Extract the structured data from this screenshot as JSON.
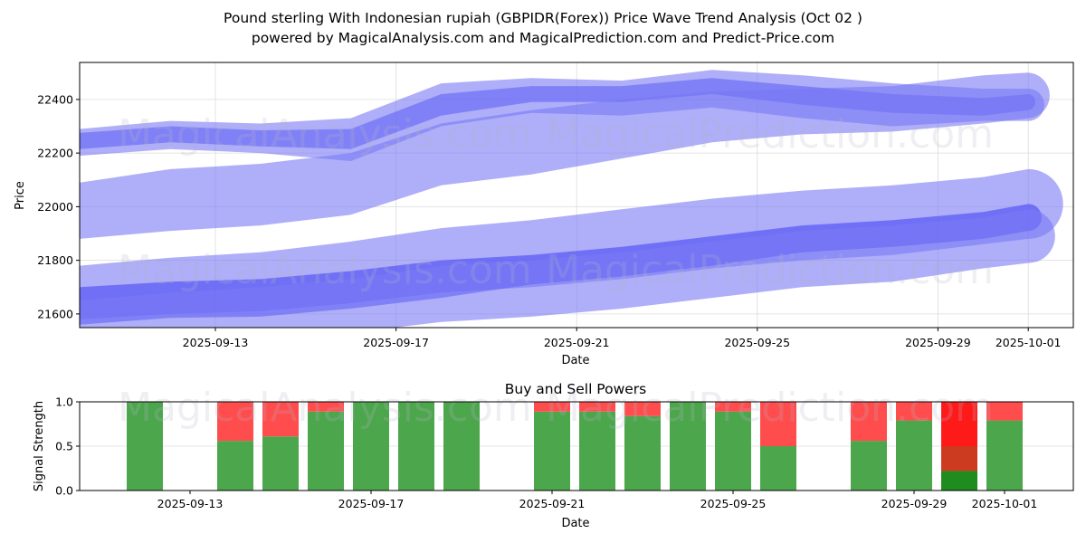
{
  "header": {
    "title": "Pound sterling With Indonesian rupiah (GBPIDR(Forex)) Price Wave Trend Analysis (Oct 02 )",
    "subtitle": "powered by MagicalAnalysis.com and MagicalPrediction.com and Predict-Price.com"
  },
  "watermarks": [
    "MagicalAnalysis.com",
    "MagicalPrediction.com"
  ],
  "colors": {
    "band_light": "#7878f5",
    "band_dark": "#4a4af5",
    "buy": "#4ca64c",
    "sell": "#ff4c4c",
    "strong_sell": "#ff1a1a",
    "mixed": "#cc3a1f",
    "strong_buy": "#1e8c1e"
  },
  "chart_data": [
    {
      "type": "area",
      "title": "Price Wave Trend Analysis",
      "xlabel": "Date",
      "ylabel": "Price",
      "ylim": [
        21549,
        22538
      ],
      "xlim": [
        "2025-09-10",
        "2025-10-02"
      ],
      "grid": true,
      "yticks": [
        21600,
        21800,
        22000,
        22200,
        22400
      ],
      "xticks": [
        "2025-09-13",
        "2025-09-17",
        "2025-09-21",
        "2025-09-25",
        "2025-09-29",
        "2025-10-01"
      ],
      "x": [
        "2025-09-10",
        "2025-09-12",
        "2025-09-14",
        "2025-09-16",
        "2025-09-18",
        "2025-09-20",
        "2025-09-22",
        "2025-09-24",
        "2025-09-26",
        "2025-09-28",
        "2025-09-30",
        "2025-10-01"
      ],
      "series": [
        {
          "name": "price-wave-core",
          "style": "dark",
          "lower": [
            22215,
            22240,
            22225,
            22215,
            22340,
            22390,
            22390,
            22420,
            22380,
            22350,
            22340,
            22360
          ],
          "upper": [
            22275,
            22300,
            22285,
            22290,
            22420,
            22450,
            22450,
            22480,
            22450,
            22420,
            22405,
            22420
          ]
        },
        {
          "name": "price-wave-halo",
          "style": "light",
          "lower": [
            22190,
            22215,
            22200,
            22170,
            22300,
            22350,
            22340,
            22370,
            22330,
            22300,
            22320,
            22320
          ],
          "upper": [
            22290,
            22320,
            22310,
            22330,
            22460,
            22480,
            22470,
            22510,
            22490,
            22460,
            22440,
            22440
          ]
        },
        {
          "name": "upper-trend-band",
          "style": "light",
          "lower": [
            21880,
            21910,
            21930,
            21970,
            22080,
            22120,
            22180,
            22240,
            22270,
            22280,
            22310,
            22330
          ],
          "upper": [
            22090,
            22140,
            22160,
            22200,
            22310,
            22360,
            22400,
            22430,
            22440,
            22450,
            22490,
            22500
          ]
        },
        {
          "name": "middle-trend-band",
          "style": "light",
          "lower": [
            21580,
            21600,
            21610,
            21640,
            21680,
            21700,
            21730,
            21770,
            21800,
            21820,
            21860,
            21880
          ],
          "upper": [
            21780,
            21810,
            21830,
            21870,
            21920,
            21950,
            21990,
            22030,
            22060,
            22080,
            22110,
            22140
          ]
        },
        {
          "name": "lower-trend-line",
          "style": "dark",
          "lower": [
            21560,
            21585,
            21590,
            21620,
            21660,
            21710,
            21740,
            21780,
            21830,
            21850,
            21880,
            21910
          ],
          "upper": [
            21700,
            21720,
            21730,
            21760,
            21800,
            21820,
            21850,
            21890,
            21930,
            21950,
            21980,
            22010
          ]
        },
        {
          "name": "lower-trend-band",
          "style": "light",
          "lower": [
            21450,
            21480,
            21500,
            21530,
            21570,
            21590,
            21620,
            21660,
            21700,
            21720,
            21770,
            21790
          ],
          "upper": [
            21650,
            21680,
            21700,
            21730,
            21780,
            21800,
            21830,
            21870,
            21910,
            21930,
            21960,
            21990
          ]
        }
      ]
    },
    {
      "type": "bar",
      "title": "Buy and Sell Powers",
      "xlabel": "Date",
      "ylabel": "Signal Strength",
      "ylim": [
        0.0,
        1.0
      ],
      "yticks": [
        "0.0",
        "0.5",
        "1.0"
      ],
      "xticks": [
        "2025-09-13",
        "2025-09-17",
        "2025-09-21",
        "2025-09-25",
        "2025-09-29",
        "2025-10-01"
      ],
      "grid": true,
      "categories": [
        "2025-09-12",
        "2025-09-14",
        "2025-09-15",
        "2025-09-16",
        "2025-09-17",
        "2025-09-18",
        "2025-09-19",
        "2025-09-21",
        "2025-09-22",
        "2025-09-23",
        "2025-09-24",
        "2025-09-25",
        "2025-09-26",
        "2025-09-28",
        "2025-09-29",
        "2025-09-30",
        "2025-10-01"
      ],
      "series": [
        {
          "name": "Buy",
          "values": [
            1.0,
            0.56,
            0.61,
            0.89,
            1.0,
            1.0,
            1.0,
            0.89,
            0.89,
            0.84,
            1.0,
            0.89,
            0.5,
            0.56,
            0.79,
            0.22,
            0.79
          ]
        },
        {
          "name": "Sell",
          "values": [
            0.0,
            0.44,
            0.39,
            0.11,
            0.0,
            0.0,
            0.0,
            0.11,
            0.11,
            0.16,
            0.0,
            0.11,
            0.5,
            0.44,
            0.21,
            0.78,
            0.21
          ]
        }
      ],
      "special": {
        "date": "2025-09-30",
        "strong_buy": 0.22,
        "mixed": 0.28,
        "strong_sell": 0.5
      }
    }
  ]
}
